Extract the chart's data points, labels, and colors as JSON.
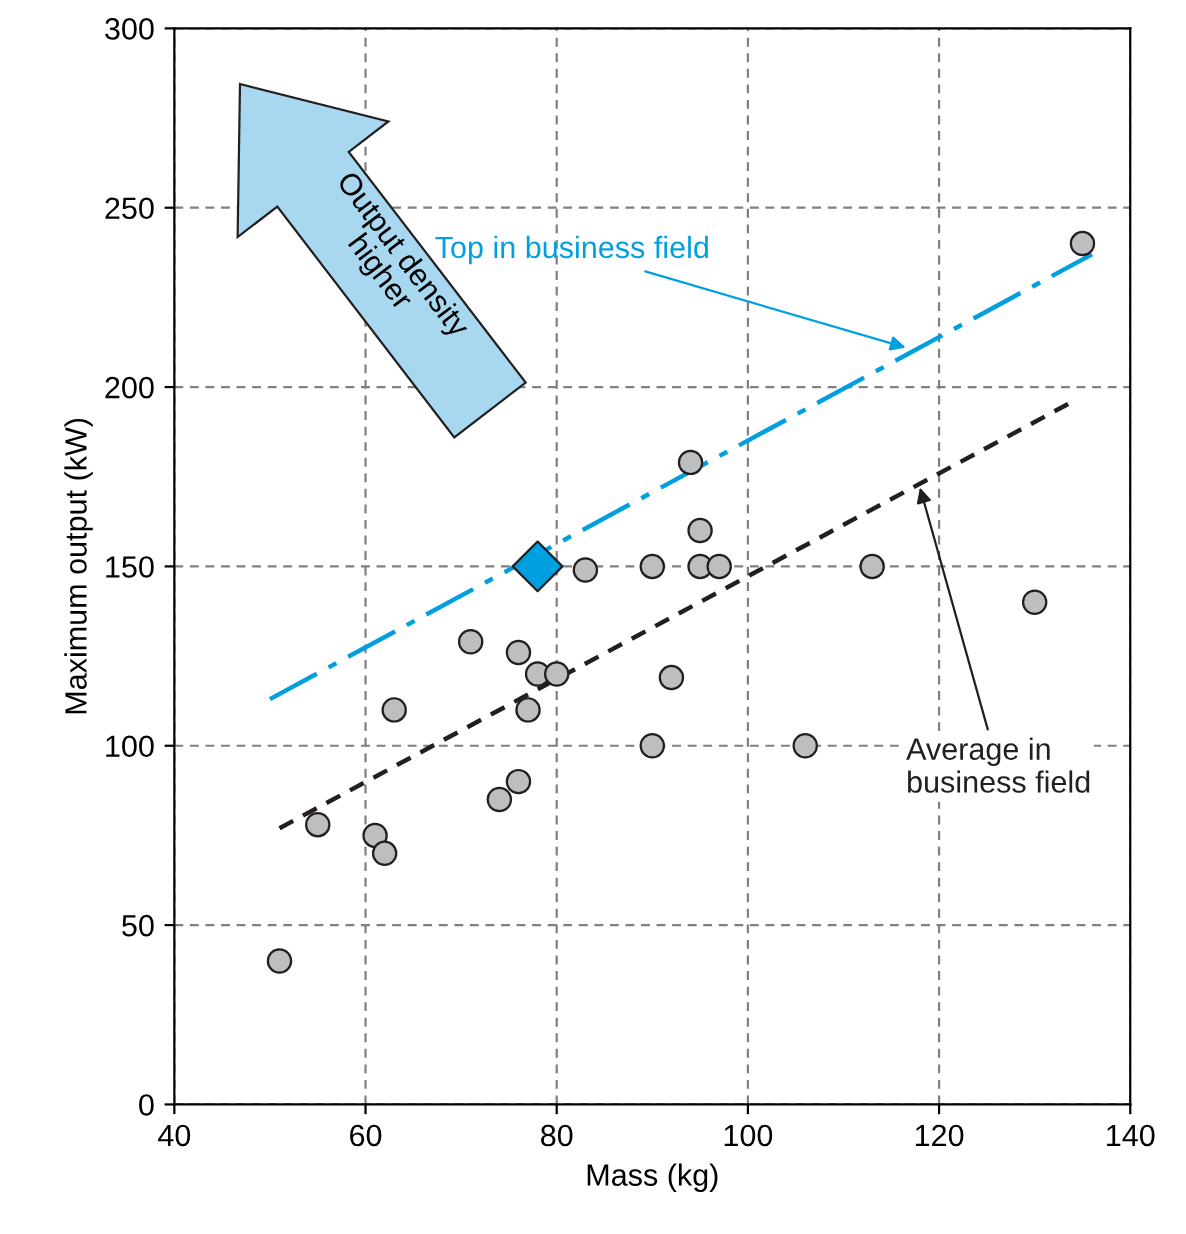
{
  "chart_data": {
    "type": "scatter",
    "xlabel": "Mass (kg)",
    "ylabel": "Maximum output (kW)",
    "xlim": [
      40,
      140
    ],
    "xticks": [
      40,
      60,
      80,
      100,
      120,
      140
    ],
    "ylim": [
      0,
      300
    ],
    "yticks": [
      0,
      50,
      100,
      150,
      200,
      250,
      300
    ],
    "grid": true,
    "series": [
      {
        "color": "#bcbec0",
        "marker": "circle",
        "x": [
          51,
          55,
          61,
          62,
          63,
          71,
          74,
          76,
          76,
          77,
          78,
          80,
          83,
          90,
          90,
          92,
          94,
          95,
          95,
          97,
          106,
          113,
          130,
          135
        ],
        "values": [
          40,
          78,
          75,
          70,
          110,
          129,
          85,
          126,
          90,
          110,
          120,
          120,
          149,
          150,
          100,
          119,
          179,
          160,
          150,
          150,
          100,
          150,
          140,
          240
        ]
      },
      {
        "type": "scatter",
        "color": "#00a0e0",
        "marker": "diamond",
        "x": [
          78
        ],
        "values": [
          150
        ]
      },
      {
        "type": "line",
        "color": "#00a0e0",
        "line_style": "dashdot",
        "x": [
          50,
          136
        ],
        "values": [
          113,
          237
        ]
      },
      {
        "type": "line",
        "color": "#231f20",
        "line_style": "dashed",
        "x": [
          51,
          134
        ],
        "values": [
          77,
          196
        ]
      }
    ],
    "annotations": [
      {
        "text": "Top in business field",
        "x": 116.5,
        "y": 211
      },
      {
        "text": "Average in business field",
        "x": 118,
        "y": 172
      },
      "Output density higher"
    ]
  }
}
